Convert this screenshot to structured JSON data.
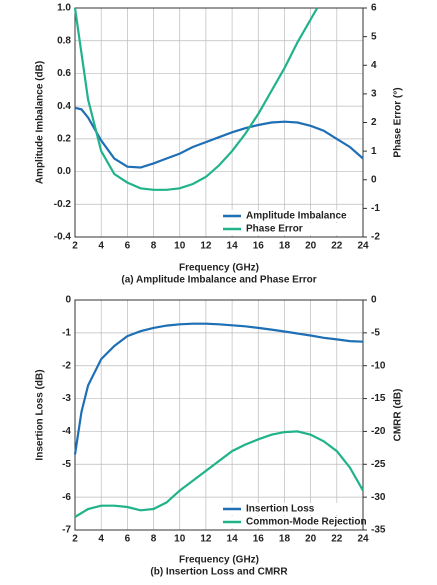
{
  "chart_data": [
    {
      "type": "line",
      "subtitle": "(a) Amplitude Imbalance and Phase Error",
      "xlabel": "Frequency (GHz)",
      "ylabel": "Amplitude Imbalance (dB)",
      "y2label": "Phase Error (°)",
      "xlim": [
        2,
        24
      ],
      "xticks": [
        2,
        4,
        6,
        8,
        10,
        12,
        14,
        16,
        18,
        20,
        22,
        24
      ],
      "ylim": [
        -0.4,
        1.0
      ],
      "yticks": [
        -0.4,
        -0.2,
        {
          "value": 0,
          "label": "0.0"
        },
        0.2,
        0.4,
        0.6,
        0.8,
        {
          "value": 1,
          "label": "1.0"
        }
      ],
      "y2lim": [
        -2,
        6
      ],
      "y2ticks": [
        -2,
        -1,
        0,
        1,
        2,
        3,
        4,
        5,
        6
      ],
      "grid": true,
      "legend": "lower right",
      "series": [
        {
          "name": "Amplitude Imbalance",
          "color": "#1f6fb5",
          "x": [
            2,
            2.5,
            3,
            4,
            5,
            6,
            7,
            8,
            9,
            10,
            11,
            12,
            13,
            14,
            15,
            16,
            17,
            18,
            19,
            20,
            21,
            22,
            23,
            24
          ],
          "values": [
            0.39,
            0.38,
            0.33,
            0.19,
            0.08,
            0.03,
            0.025,
            0.05,
            0.08,
            0.11,
            0.15,
            0.18,
            0.21,
            0.24,
            0.265,
            0.285,
            0.3,
            0.305,
            0.3,
            0.28,
            0.25,
            0.2,
            0.15,
            0.08
          ]
        },
        {
          "name": "Phase Error",
          "color": "#20b38a",
          "axis": "y2",
          "x": [
            2,
            3,
            4,
            5,
            6,
            7,
            8,
            9,
            10,
            11,
            12,
            13,
            14,
            15,
            16,
            17,
            18,
            19,
            20,
            20.5
          ],
          "values": [
            6,
            2.8,
            1.0,
            0.2,
            -0.1,
            -0.3,
            -0.35,
            -0.35,
            -0.3,
            -0.15,
            0.1,
            0.5,
            1.0,
            1.6,
            2.3,
            3.1,
            3.9,
            4.8,
            5.6,
            6
          ]
        }
      ]
    },
    {
      "type": "line",
      "subtitle": "(b) Insertion Loss and CMRR",
      "xlabel": "Frequency (GHz)",
      "ylabel": "Insertion Loss (dB)",
      "y2label": "CMRR (dB)",
      "xlim": [
        2,
        24
      ],
      "xticks": [
        2,
        4,
        6,
        8,
        10,
        12,
        14,
        16,
        18,
        20,
        22,
        24
      ],
      "ylim": [
        -7,
        0
      ],
      "yticks": [
        -7,
        -6,
        -5,
        -4,
        -3,
        -2,
        -1,
        0
      ],
      "y2lim": [
        -35,
        0
      ],
      "y2ticks": [
        -35,
        -30,
        -25,
        -20,
        -15,
        -10,
        -5,
        0
      ],
      "grid": true,
      "legend": "lower right",
      "series": [
        {
          "name": "Insertion Loss",
          "color": "#1f6fb5",
          "x": [
            2,
            2.5,
            3,
            4,
            5,
            6,
            7,
            8,
            9,
            10,
            11,
            12,
            13,
            14,
            15,
            16,
            17,
            18,
            19,
            20,
            21,
            22,
            23,
            24
          ],
          "values": [
            -4.7,
            -3.4,
            -2.6,
            -1.8,
            -1.4,
            -1.1,
            -0.95,
            -0.85,
            -0.78,
            -0.74,
            -0.72,
            -0.72,
            -0.74,
            -0.77,
            -0.8,
            -0.85,
            -0.9,
            -0.96,
            -1.02,
            -1.08,
            -1.15,
            -1.2,
            -1.25,
            -1.27
          ]
        },
        {
          "name": "Common-Mode Rejection",
          "color": "#20b38a",
          "axis": "y2",
          "x": [
            2,
            3,
            4,
            5,
            6,
            7,
            8,
            9,
            10,
            11,
            12,
            13,
            14,
            15,
            16,
            17,
            18,
            19,
            20,
            21,
            22,
            23,
            24
          ],
          "values": [
            -33,
            -31.8,
            -31.3,
            -31.3,
            -31.5,
            -32,
            -31.8,
            -30.8,
            -29,
            -27.5,
            -26,
            -24.5,
            -23,
            -22,
            -21.2,
            -20.5,
            -20.1,
            -20,
            -20.5,
            -21.5,
            -23,
            -25.5,
            -29
          ]
        }
      ]
    }
  ]
}
